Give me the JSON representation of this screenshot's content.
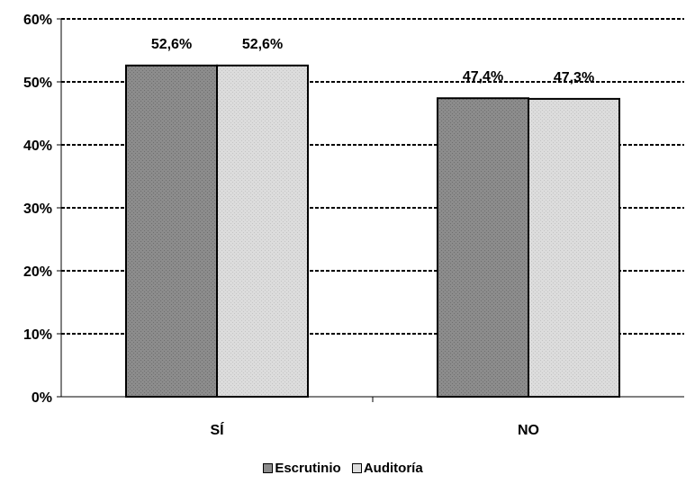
{
  "chart_data": {
    "type": "bar",
    "categories": [
      "SÍ",
      "NO"
    ],
    "series": [
      {
        "name": "Escrutinio",
        "values": [
          52.6,
          47.4
        ],
        "labels": [
          "52,6%",
          "47,4%"
        ],
        "color": "#8c8c8c"
      },
      {
        "name": "Auditoría",
        "values": [
          52.6,
          47.3
        ],
        "labels": [
          "52,6%",
          "47,3%"
        ],
        "color": "#dcdcdc"
      }
    ],
    "yticks": [
      "0%",
      "10%",
      "20%",
      "30%",
      "40%",
      "50%",
      "60%"
    ],
    "ylim": [
      0,
      60
    ],
    "grid": true,
    "legend_position": "bottom"
  }
}
